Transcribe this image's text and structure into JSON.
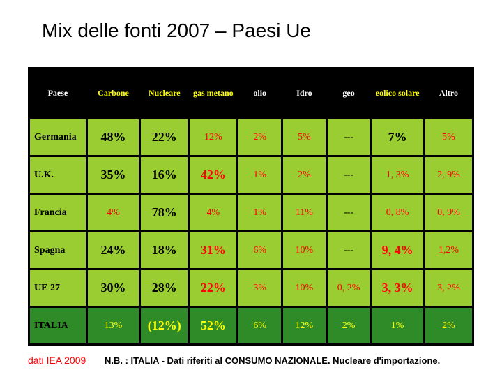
{
  "title": "Mix delle fonti 2007 – Paesi Ue",
  "title_fontsize": 28,
  "colors": {
    "bg_green_light": "#9acd32",
    "bg_green_dark": "#2e8b27",
    "bg_black": "#000000",
    "text_black": "#000000",
    "text_red": "#ff0000",
    "text_yellow": "#ffff00",
    "text_white": "#ffffff"
  },
  "table": {
    "header_bg": "#000000",
    "header_fg_colors": [
      "#ffffff",
      "#ffff00",
      "#ffff00",
      "#ffff00",
      "#ffffff",
      "#ffffff",
      "#ffffff",
      "#ffff00",
      "#ffffff"
    ],
    "header_row_height": 72,
    "columns": [
      "Paese",
      "Carbone",
      "Nucleare",
      "gas metano",
      "olio",
      "Idro",
      "geo",
      "eolico solare",
      "Altro"
    ],
    "col_widths_pct": [
      13,
      12,
      11,
      11,
      10,
      10,
      10,
      12,
      11
    ],
    "rows": [
      {
        "name": "Germania",
        "name_color": "#000000",
        "row_bg": "#9acd32",
        "cells": [
          {
            "v": "48%",
            "clr": "#000000",
            "emph": true
          },
          {
            "v": "22%",
            "clr": "#000000",
            "emph": true
          },
          {
            "v": "12%",
            "clr": "#ff0000"
          },
          {
            "v": "2%",
            "clr": "#ff0000"
          },
          {
            "v": "5%",
            "clr": "#ff0000"
          },
          {
            "v": "---",
            "clr": "#000000"
          },
          {
            "v": "7%",
            "clr": "#000000",
            "emph": true
          },
          {
            "v": "5%",
            "clr": "#ff0000"
          }
        ]
      },
      {
        "name": "U.K.",
        "name_color": "#000000",
        "row_bg": "#9acd32",
        "cells": [
          {
            "v": "35%",
            "clr": "#000000",
            "emph": true
          },
          {
            "v": "16%",
            "clr": "#000000",
            "emph": true
          },
          {
            "v": "42%",
            "clr": "#ff0000",
            "emph": true
          },
          {
            "v": "1%",
            "clr": "#ff0000"
          },
          {
            "v": "2%",
            "clr": "#ff0000"
          },
          {
            "v": "---",
            "clr": "#000000"
          },
          {
            "v": "1, 3%",
            "clr": "#ff0000"
          },
          {
            "v": "2, 9%",
            "clr": "#ff0000"
          }
        ]
      },
      {
        "name": "Francia",
        "name_color": "#000000",
        "row_bg": "#9acd32",
        "cells": [
          {
            "v": "4%",
            "clr": "#ff0000"
          },
          {
            "v": "78%",
            "clr": "#000000",
            "emph": true
          },
          {
            "v": "4%",
            "clr": "#ff0000"
          },
          {
            "v": "1%",
            "clr": "#ff0000"
          },
          {
            "v": "11%",
            "clr": "#ff0000"
          },
          {
            "v": "---",
            "clr": "#000000"
          },
          {
            "v": "0, 8%",
            "clr": "#ff0000"
          },
          {
            "v": "0, 9%",
            "clr": "#ff0000"
          }
        ]
      },
      {
        "name": "Spagna",
        "name_color": "#000000",
        "row_bg": "#9acd32",
        "cells": [
          {
            "v": "24%",
            "clr": "#000000",
            "emph": true
          },
          {
            "v": "18%",
            "clr": "#000000",
            "emph": true
          },
          {
            "v": "31%",
            "clr": "#ff0000",
            "emph": true
          },
          {
            "v": "6%",
            "clr": "#ff0000"
          },
          {
            "v": "10%",
            "clr": "#ff0000"
          },
          {
            "v": "---",
            "clr": "#000000"
          },
          {
            "v": "9, 4%",
            "clr": "#ff0000",
            "emph": true
          },
          {
            "v": "1,2%",
            "clr": "#ff0000"
          }
        ]
      },
      {
        "name": "UE 27",
        "name_color": "#000000",
        "row_bg": "#9acd32",
        "cells": [
          {
            "v": "30%",
            "clr": "#000000",
            "emph": true
          },
          {
            "v": "28%",
            "clr": "#000000",
            "emph": true
          },
          {
            "v": "22%",
            "clr": "#ff0000",
            "emph": true
          },
          {
            "v": "3%",
            "clr": "#ff0000"
          },
          {
            "v": "10%",
            "clr": "#ff0000"
          },
          {
            "v": "0, 2%",
            "clr": "#ff0000"
          },
          {
            "v": "3, 3%",
            "clr": "#ff0000",
            "emph": true
          },
          {
            "v": "3, 2%",
            "clr": "#ff0000"
          }
        ]
      },
      {
        "name": "ITALIA",
        "name_color": "#000000",
        "row_bg": "#2e8b27",
        "cells": [
          {
            "v": "13%",
            "clr": "#ffff00"
          },
          {
            "v": "(12%)",
            "clr": "#ffff00",
            "emph": true
          },
          {
            "v": "52%",
            "clr": "#ffff00",
            "emph": true
          },
          {
            "v": "6%",
            "clr": "#ffff00"
          },
          {
            "v": "12%",
            "clr": "#ffff00"
          },
          {
            "v": "2%",
            "clr": "#ffff00"
          },
          {
            "v": "1%",
            "clr": "#ffff00"
          },
          {
            "v": "2%",
            "clr": "#ffff00"
          }
        ]
      }
    ]
  },
  "footer": {
    "source_label": "dati IEA 2009",
    "source_color": "#ff0000",
    "note": "N.B. : ITALIA - Dati riferiti al CONSUMO NAZIONALE. Nucleare d'importazione.",
    "note_color": "#000000"
  }
}
